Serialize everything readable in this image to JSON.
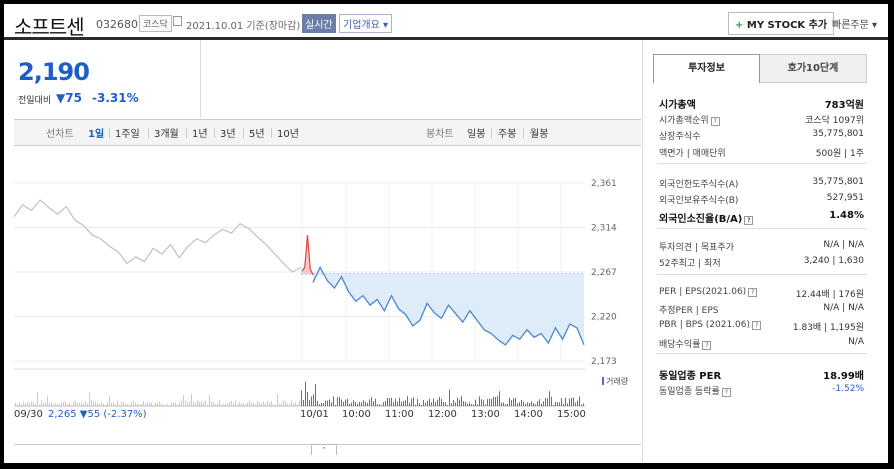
{
  "header": {
    "name": "소프트센",
    "code": "032680",
    "market": "코스닥",
    "date": "2021.10.01 기준(장마감)",
    "realtime": "실시간",
    "corp": "기업개요 ▾",
    "mystock": "MY STOCK 추가",
    "mystock_plus": "+",
    "quick": "빠른주문 ▾"
  },
  "price": {
    "current": "2,190",
    "change_label": "전일대비",
    "change": "▼75",
    "change_pct": "-3.31%"
  },
  "tabs": {
    "line_label": "선차트",
    "line_items": [
      "1일",
      "1주일",
      "3개월",
      "1년",
      "3년",
      "5년",
      "10년"
    ],
    "line_active": "1일",
    "candle_label": "봉차트",
    "candle_items": [
      "일봉",
      "주봉",
      "월봉"
    ]
  },
  "chart_data": {
    "type": "line",
    "y_ticks": [
      2361,
      2314,
      2267,
      2220,
      2173
    ],
    "ylim": [
      2173,
      2361
    ],
    "x_labels": [
      "10/01",
      "10:00",
      "11:00",
      "12:00",
      "13:00",
      "14:00",
      "15:00"
    ],
    "prev_close": 2265,
    "prev_day": {
      "label": "09/30",
      "summary": "2,265 ▼55 (-2.37%)"
    },
    "series": [
      {
        "values": [
          2325,
          2338,
          2332,
          2343,
          2335,
          2328,
          2336,
          2322,
          2316,
          2306,
          2302,
          2294,
          2288,
          2276,
          2283,
          2278,
          2292,
          2286,
          2296,
          2282,
          2294,
          2302,
          2298,
          2306,
          2312,
          2308,
          2318,
          2313,
          2304,
          2296,
          2286,
          2276,
          2267,
          2272
        ]
      },
      {
        "values": [
          2268,
          2272,
          2306,
          2270,
          2264
        ]
      },
      {
        "values": [
          2256,
          2272,
          2258,
          2250,
          2262,
          2246,
          2236,
          2242,
          2232,
          2238,
          2226,
          2242,
          2228,
          2222,
          2210,
          2216,
          2234,
          2224,
          2218,
          2232,
          2223,
          2214,
          2226,
          2216,
          2206,
          2202,
          2195,
          2190,
          2200,
          2196,
          2206,
          2198,
          2202,
          2192,
          2208,
          2196,
          2212,
          2208,
          2190
        ]
      }
    ],
    "volume_label": "거래량",
    "colors": {
      "prev_line": "#c0c0c0",
      "line": "#4a86d0",
      "fill": "#deebf8",
      "up_fill": "#f7c9c9",
      "up_line": "#e04040",
      "ref_line": "#7a8fc8",
      "volume": "#6e5fb8"
    }
  },
  "panel": {
    "tab_active": "투자정보",
    "tab_other": "호가10단계",
    "rows": [
      {
        "k": "시가총액",
        "v": "783억원"
      },
      {
        "k": "시가총액순위",
        "v": "코스닥 1097위"
      },
      {
        "k": "상장주식수",
        "v": "35,775,801"
      },
      {
        "k": "액면가 | 매매단위",
        "v": "500원 | 1주"
      },
      {
        "k": "외국인한도주식수(A)",
        "v": "35,775,801"
      },
      {
        "k": "외국인보유주식수(B)",
        "v": "527,951"
      },
      {
        "k": "외국인소진율(B/A)",
        "v": "1.48%"
      },
      {
        "k": "투자의견 | 목표주가",
        "v": "N/A | N/A"
      },
      {
        "k": "52주최고 | 최저",
        "v": "3,240 | 1,630"
      },
      {
        "k": "PER | EPS(2021.06)",
        "v": "12.44배 | 176원"
      },
      {
        "k": "추정PER | EPS",
        "v": "N/A | N/A"
      },
      {
        "k": "PBR | BPS (2021.06)",
        "v": "1.83배 | 1,195원"
      },
      {
        "k": "배당수익률",
        "v": "N/A"
      },
      {
        "k": "동일업종 PER",
        "v": "18.99배"
      },
      {
        "k": "동일업종 등락률",
        "v": "-1.52%"
      }
    ]
  }
}
